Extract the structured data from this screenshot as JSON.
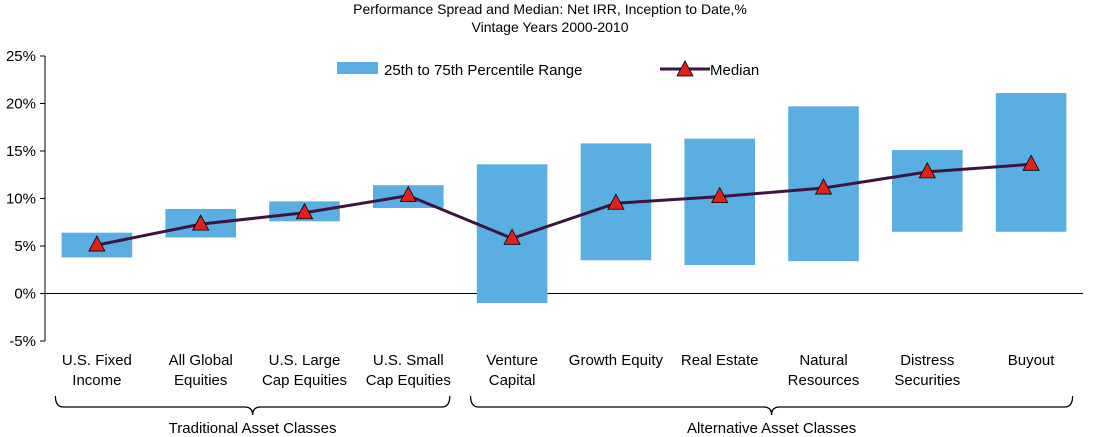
{
  "chart_data": {
    "type": "bar",
    "title": "Performance Spread and Median: Net IRR, Inception to Date,%",
    "subtitle": "Vintage Years 2000-2010",
    "ylim": [
      -5,
      25
    ],
    "yticks": [
      "25%",
      "20%",
      "15%",
      "10%",
      "5%",
      "0%",
      "-5%"
    ],
    "ytick_values": [
      25,
      20,
      15,
      10,
      5,
      0,
      -5
    ],
    "legend_position": "top",
    "categories": [
      [
        "U.S. Fixed",
        "Income"
      ],
      [
        "All Global",
        "Equities"
      ],
      [
        "U.S. Large",
        "Cap Equities"
      ],
      [
        "U.S. Small",
        "Cap Equities"
      ],
      [
        "Venture",
        "Capital"
      ],
      [
        "Growth Equity"
      ],
      [
        "Real Estate"
      ],
      [
        "Natural",
        "Resources"
      ],
      [
        "Distress",
        "Securities"
      ],
      [
        "Buyout"
      ]
    ],
    "series": [
      {
        "name": "25th to 75th Percentile Range",
        "kind": "floating-bar",
        "color": "#5aaee1",
        "low": [
          3.8,
          5.9,
          7.6,
          9.0,
          -1.0,
          3.5,
          3.0,
          3.4,
          6.5,
          6.5
        ],
        "high": [
          6.4,
          8.9,
          9.7,
          11.4,
          13.6,
          15.8,
          16.3,
          19.7,
          15.1,
          21.1
        ]
      },
      {
        "name": "Median",
        "kind": "line-marker",
        "line_color": "#3d1440",
        "marker_color": "#e0201b",
        "values": [
          5.1,
          7.3,
          8.5,
          10.3,
          5.8,
          9.5,
          10.2,
          11.1,
          12.8,
          13.6
        ]
      }
    ],
    "groups": [
      {
        "label": "Traditional Asset Classes",
        "from": 0,
        "to": 3
      },
      {
        "label": "Alternative Asset Classes",
        "from": 4,
        "to": 9
      }
    ]
  }
}
